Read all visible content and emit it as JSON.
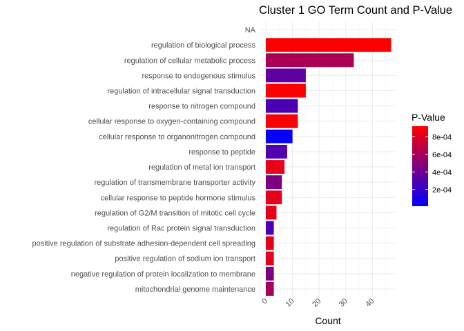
{
  "chart_data": {
    "type": "bar",
    "orientation": "horizontal",
    "title": "Cluster 1 GO Term Count and P-Value",
    "xlabel": "Count",
    "ylabel": "",
    "xlim": [
      0,
      48
    ],
    "x_ticks": [
      0,
      10,
      20,
      30,
      40
    ],
    "grid": true,
    "categories": [
      "NA",
      "regulation of biological process",
      "regulation of cellular metabolic process",
      "response to endogenous stimulus",
      "regulation of intracellular signal transduction",
      "response to nitrogen compound",
      "cellular response to oxygen-containing compound",
      "cellular response to organonitrogen compound",
      "response to peptide",
      "regulation of metal ion transport",
      "regulation of transmembrane transporter activity",
      "cellular response to peptide hormone stimulus",
      "regulation of G2/M transition of mitotic cell cycle",
      "regulation of Rac protein signal transduction",
      "positive regulation of substrate adhesion-dependent cell spreading",
      "positive regulation of sodium ion transport",
      "negative regulation of protein localization to membrane",
      "mitochondrial genome maintenance"
    ],
    "values": [
      null,
      47,
      33,
      15,
      15,
      12,
      12,
      10,
      8,
      7,
      6,
      6,
      4,
      3,
      3,
      3,
      3,
      3
    ],
    "p_values": [
      null,
      0.00092,
      0.00062,
      0.00035,
      0.00092,
      0.00028,
      0.0009,
      3e-05,
      0.0003,
      0.00083,
      0.00045,
      0.00083,
      0.00083,
      0.00028,
      0.00083,
      0.00083,
      0.00045,
      0.0006
    ],
    "color_scale": {
      "title": "P-Value",
      "low_color": "#0000ff",
      "high_color": "#ff0000",
      "min": 1e-05,
      "max": 0.00092,
      "ticks": [
        "2e-04",
        "4e-04",
        "6e-04",
        "8e-04"
      ],
      "tick_values": [
        0.0002,
        0.0004,
        0.0006,
        0.0008
      ]
    },
    "legend_position": "right"
  }
}
